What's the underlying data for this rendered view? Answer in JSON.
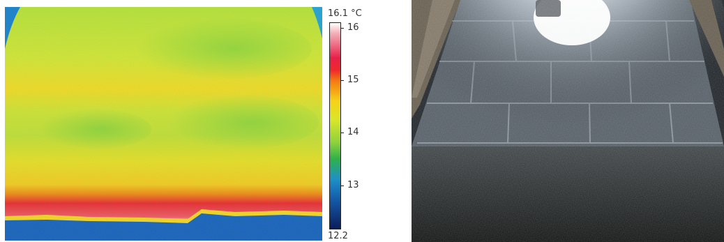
{
  "thermal_image": {
    "colors": {
      "hot_white": "#ffffff",
      "red": "#e8204a",
      "orange": "#f27a12",
      "yellow": "#f6d21a",
      "yellow_green": "#c9e03a",
      "green": "#3fb54a",
      "blue": "#1e70c8",
      "navy": "#0c1d5a"
    }
  },
  "scale": {
    "max_label": "16.1 °C",
    "min_label": "12.2",
    "ticks": [
      "16",
      "15",
      "14",
      "13"
    ]
  },
  "photo": {
    "colors": {
      "wall": "#c9d0d8",
      "glare": "#ffffff",
      "floor": "#2a2c2a"
    }
  }
}
